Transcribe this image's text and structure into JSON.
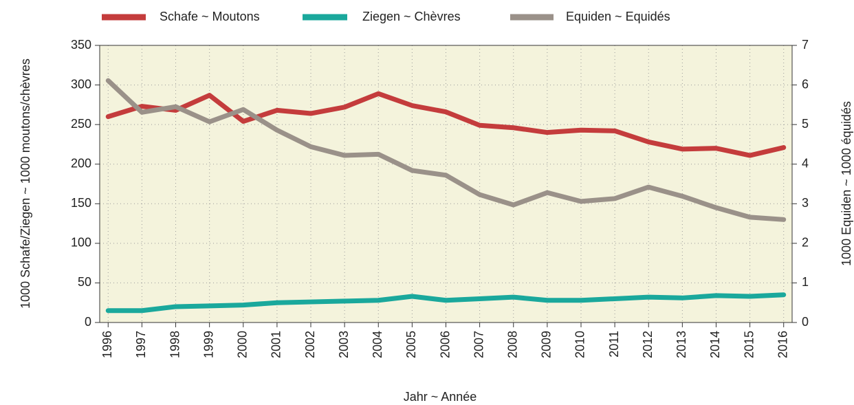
{
  "chart_data": {
    "type": "line",
    "x": [
      1996,
      1997,
      1998,
      1999,
      2000,
      2001,
      2002,
      2003,
      2004,
      2005,
      2006,
      2007,
      2008,
      2009,
      2010,
      2011,
      2012,
      2013,
      2014,
      2015,
      2016
    ],
    "xlim": [
      1995.75,
      2016.25
    ],
    "xticks": [
      1996,
      1997,
      1998,
      1999,
      2000,
      2001,
      2002,
      2003,
      2004,
      2005,
      2006,
      2007,
      2008,
      2009,
      2010,
      2011,
      2012,
      2013,
      2014,
      2015,
      2016
    ],
    "xlabel": "Jahr ~ Année",
    "ylabel": "1000 Schafe/Ziegen ~ 1000 moutons/chèvres",
    "y2label": "1000 Equiden ~ 1000 équidés",
    "ylim": [
      0,
      350
    ],
    "yticks": [
      0,
      50,
      100,
      150,
      200,
      250,
      300,
      350
    ],
    "y2lim": [
      0,
      7
    ],
    "y2ticks": [
      0,
      1,
      2,
      3,
      4,
      5,
      6,
      7
    ],
    "grid": true,
    "legend": "top",
    "series": [
      {
        "name": "Schafe ~ Moutons",
        "color": "#c43c3c",
        "values": [
          260,
          273,
          268,
          287,
          254,
          268,
          264,
          272,
          289,
          274,
          266,
          249,
          246,
          240,
          243,
          242,
          228,
          219,
          220,
          211,
          221
        ]
      },
      {
        "name": "Ziegen ~ Chèvres",
        "color": "#1aa89c",
        "values": [
          15,
          15,
          20,
          21,
          22,
          25,
          26,
          27,
          28,
          33,
          28,
          30,
          32,
          28,
          28,
          30,
          32,
          31,
          34,
          33,
          35
        ]
      },
      {
        "name": "Equiden ~ Equidés",
        "color": "#9a9189",
        "axis": "y2",
        "values": [
          6.11,
          5.31,
          5.45,
          5.07,
          5.38,
          4.86,
          4.44,
          4.22,
          4.25,
          3.84,
          3.72,
          3.23,
          2.97,
          3.28,
          3.06,
          3.13,
          3.42,
          3.19,
          2.9,
          2.66,
          2.6
        ]
      }
    ]
  }
}
